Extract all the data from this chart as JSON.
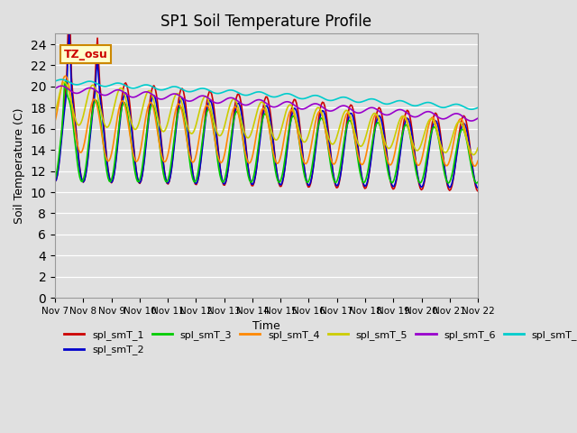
{
  "title": "SP1 Soil Temperature Profile",
  "xlabel": "Time",
  "ylabel": "Soil Temperature (C)",
  "annotation_text": "TZ_osu",
  "ylim": [
    0,
    25
  ],
  "yticks": [
    0,
    2,
    4,
    6,
    8,
    10,
    12,
    14,
    16,
    18,
    20,
    22,
    24
  ],
  "xtick_labels": [
    "Nov 7",
    "Nov 8",
    "Nov 9",
    "Nov 10",
    "Nov 11",
    "Nov 12",
    "Nov 13",
    "Nov 14",
    "Nov 15",
    "Nov 16",
    "Nov 17",
    "Nov 18",
    "Nov 19",
    "Nov 20",
    "Nov 21",
    "Nov 22"
  ],
  "background_color": "#e0e0e0",
  "plot_bg_color": "#e0e0e0",
  "colors": {
    "spl_smT_1": "#cc0000",
    "spl_smT_2": "#0000cc",
    "spl_smT_3": "#00cc00",
    "spl_smT_4": "#ff8800",
    "spl_smT_5": "#cccc00",
    "spl_smT_6": "#9900cc",
    "spl_smT_7": "#00cccc"
  }
}
